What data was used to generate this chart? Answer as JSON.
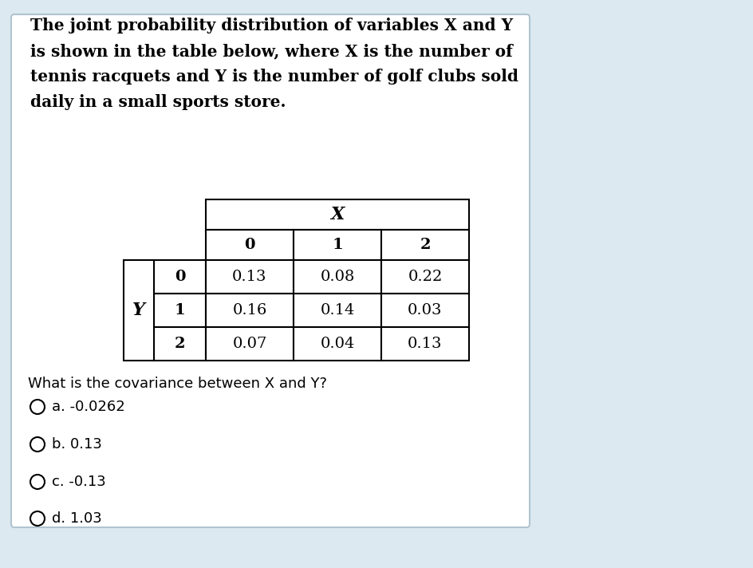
{
  "background_color": "#dce9f0",
  "card_color": "#ffffff",
  "card_border_color": "#b0c4d0",
  "title_lines": [
    "The joint probability distribution of variables X and Y",
    "is shown in the table below, where X is the number of",
    "tennis racquets and Y is the number of golf clubs sold",
    "daily in a small sports store."
  ],
  "x_label": "X",
  "y_label": "Y",
  "x_values": [
    "0",
    "1",
    "2"
  ],
  "y_values": [
    "0",
    "1",
    "2"
  ],
  "table_data": [
    [
      "0.13",
      "0.08",
      "0.22"
    ],
    [
      "0.16",
      "0.14",
      "0.03"
    ],
    [
      "0.07",
      "0.04",
      "0.13"
    ]
  ],
  "question": "What is the covariance between X and Y?",
  "options": [
    "a. -0.0262",
    "b. 0.13",
    "c. -0.13",
    "d. 1.03"
  ],
  "title_fontsize": 14.5,
  "table_fontsize": 14,
  "question_fontsize": 13,
  "option_fontsize": 13
}
